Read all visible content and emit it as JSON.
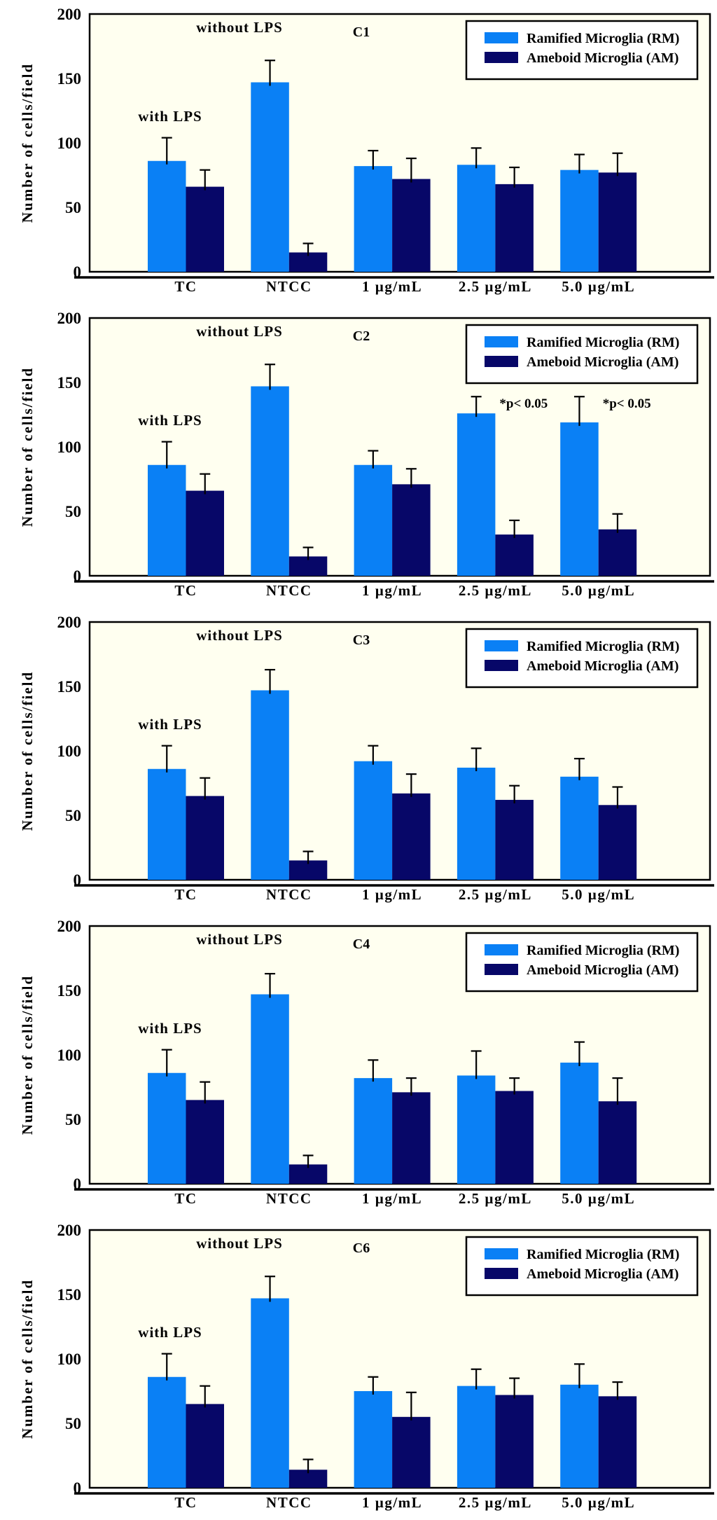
{
  "figure": {
    "ylabel": "Number of cells/field",
    "ylim": [
      0,
      200
    ],
    "y_ticks": [
      0,
      50,
      100,
      150,
      200
    ],
    "categories": [
      "TC",
      "NTCC",
      "1 µg/mL",
      "2.5 µg/mL",
      "5.0 µg/mL"
    ],
    "legend": {
      "items": [
        {
          "label": "Ramified Microglia (RM)",
          "color": "#0a80f5"
        },
        {
          "label": "Ameboid Microglia (AM)",
          "color": "#070768"
        }
      ]
    },
    "annotations": {
      "without_lps": "without LPS",
      "with_lps": "with LPS"
    },
    "colors": {
      "plot_background": "#fffff0",
      "page_background": "#ffffff",
      "axis_and_text": "#000000",
      "rm_bar": "#0a80f5",
      "am_bar": "#070768"
    }
  },
  "chart_data": [
    {
      "type": "bar",
      "title": "C1",
      "ylabel": "Number of cells/field",
      "ylim": [
        0,
        200
      ],
      "categories": [
        "TC",
        "NTCC",
        "1 µg/mL",
        "2.5 µg/mL",
        "5.0 µg/mL"
      ],
      "series": [
        {
          "name": "Ramified Microglia (RM)",
          "color": "#0a80f5",
          "values": [
            86,
            147,
            82,
            83,
            79
          ],
          "errors": [
            18,
            17,
            12,
            13,
            12
          ]
        },
        {
          "name": "Ameboid Microglia (AM)",
          "color": "#070768",
          "values": [
            66,
            15,
            72,
            68,
            77
          ],
          "errors": [
            13,
            7,
            16,
            13,
            15
          ]
        }
      ],
      "annotations": [
        "without LPS",
        "with LPS"
      ],
      "sig": []
    },
    {
      "type": "bar",
      "title": "C2",
      "ylabel": "Number of cells/field",
      "ylim": [
        0,
        200
      ],
      "categories": [
        "TC",
        "NTCC",
        "1 µg/mL",
        "2.5 µg/mL",
        "5.0 µg/mL"
      ],
      "series": [
        {
          "name": "Ramified Microglia (RM)",
          "color": "#0a80f5",
          "values": [
            86,
            147,
            86,
            126,
            119
          ],
          "errors": [
            18,
            17,
            11,
            13,
            20
          ]
        },
        {
          "name": "Ameboid Microglia (AM)",
          "color": "#070768",
          "values": [
            66,
            15,
            71,
            32,
            36
          ],
          "errors": [
            13,
            7,
            12,
            11,
            12
          ]
        }
      ],
      "annotations": [
        "without LPS",
        "with LPS"
      ],
      "sig": [
        {
          "category_index": 3,
          "text": "*p< 0.05"
        },
        {
          "category_index": 4,
          "text": "*p< 0.05"
        }
      ]
    },
    {
      "type": "bar",
      "title": "C3",
      "ylabel": "Number of cells/field",
      "ylim": [
        0,
        200
      ],
      "categories": [
        "TC",
        "NTCC",
        "1 µg/mL",
        "2.5 µg/mL",
        "5.0 µg/mL"
      ],
      "series": [
        {
          "name": "Ramified Microglia (RM)",
          "color": "#0a80f5",
          "values": [
            86,
            147,
            92,
            87,
            80
          ],
          "errors": [
            18,
            16,
            12,
            15,
            14
          ]
        },
        {
          "name": "Ameboid Microglia (AM)",
          "color": "#070768",
          "values": [
            65,
            15,
            67,
            62,
            58
          ],
          "errors": [
            14,
            7,
            15,
            11,
            14
          ]
        }
      ],
      "annotations": [
        "without LPS",
        "with LPS"
      ],
      "sig": []
    },
    {
      "type": "bar",
      "title": "C4",
      "ylabel": "Number of cells/field",
      "ylim": [
        0,
        200
      ],
      "categories": [
        "TC",
        "NTCC",
        "1 µg/mL",
        "2.5 µg/mL",
        "5.0 µg/mL"
      ],
      "series": [
        {
          "name": "Ramified Microglia (RM)",
          "color": "#0a80f5",
          "values": [
            86,
            147,
            82,
            84,
            94
          ],
          "errors": [
            18,
            16,
            14,
            19,
            16
          ]
        },
        {
          "name": "Ameboid Microglia (AM)",
          "color": "#070768",
          "values": [
            65,
            15,
            71,
            72,
            64
          ],
          "errors": [
            14,
            7,
            11,
            10,
            18
          ]
        }
      ],
      "annotations": [
        "without LPS",
        "with LPS"
      ],
      "sig": []
    },
    {
      "type": "bar",
      "title": "C6",
      "ylabel": "Number of cells/field",
      "ylim": [
        0,
        200
      ],
      "categories": [
        "TC",
        "NTCC",
        "1 µg/mL",
        "2.5 µg/mL",
        "5.0 µg/mL"
      ],
      "series": [
        {
          "name": "Ramified Microglia (RM)",
          "color": "#0a80f5",
          "values": [
            86,
            147,
            75,
            79,
            80
          ],
          "errors": [
            18,
            17,
            11,
            13,
            16
          ]
        },
        {
          "name": "Ameboid Microglia (AM)",
          "color": "#070768",
          "values": [
            65,
            14,
            55,
            72,
            71
          ],
          "errors": [
            14,
            8,
            19,
            13,
            11
          ]
        }
      ],
      "annotations": [
        "without LPS",
        "with LPS"
      ],
      "sig": []
    }
  ]
}
